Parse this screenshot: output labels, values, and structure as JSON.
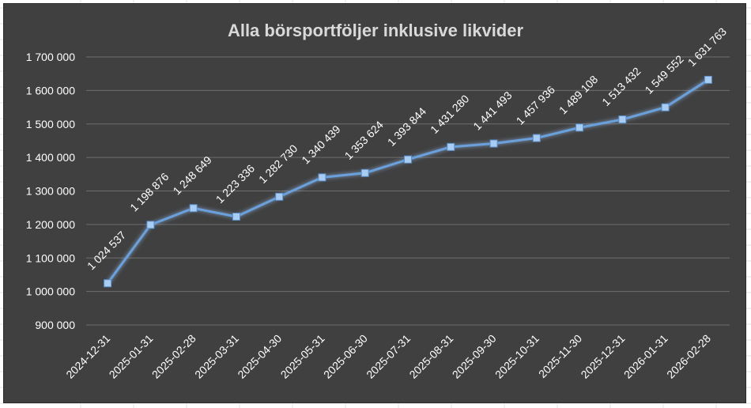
{
  "colors": {
    "background": "#404040",
    "gridline": "#6e6e6e",
    "series_line": "#6aa0dc",
    "series_glow": "#9cc8ff",
    "marker_fill": "#a9cdf2",
    "marker_stroke": "#5b8fcb",
    "text": "#ffffff",
    "title": "#d9d9d9"
  },
  "chart_data": {
    "type": "line",
    "title": "Alla börsportföljer inklusive likvider",
    "xlabel": "",
    "ylabel": "",
    "categories": [
      "2024-12-31",
      "2025-01-31",
      "2025-02-28",
      "2025-03-31",
      "2025-04-30",
      "2025-05-31",
      "2025-06-30",
      "2025-07-31",
      "2025-08-31",
      "2025-09-30",
      "2025-10-31",
      "2025-11-30",
      "2025-12-31",
      "2026-01-31",
      "2026-02-28"
    ],
    "series": [
      {
        "values": [
          1024537,
          1198876,
          1248649,
          1223336,
          1282730,
          1340439,
          1353624,
          1393844,
          1431280,
          1441493,
          1457936,
          1489108,
          1513432,
          1549552,
          1631763
        ],
        "data_labels": [
          "1 024 537",
          "1 198 876",
          "1 248 649",
          "1 223 336",
          "1 282 730",
          "1 340 439",
          "1 353 624",
          "1 393 844",
          "1 431 280",
          "1 441 493",
          "1 457 936",
          "1 489 108",
          "1 513 432",
          "1 549 552",
          "1 631 763"
        ]
      }
    ],
    "ylim": [
      900000,
      1700000
    ],
    "yticks": [
      900000,
      1000000,
      1100000,
      1200000,
      1300000,
      1400000,
      1500000,
      1600000,
      1700000
    ],
    "ytick_labels": [
      "900 000",
      "1 000 000",
      "1 100 000",
      "1 200 000",
      "1 300 000",
      "1 400 000",
      "1 500 000",
      "1 600 000",
      "1 700 000"
    ],
    "grid": true,
    "legend": "none",
    "marker": "square"
  }
}
